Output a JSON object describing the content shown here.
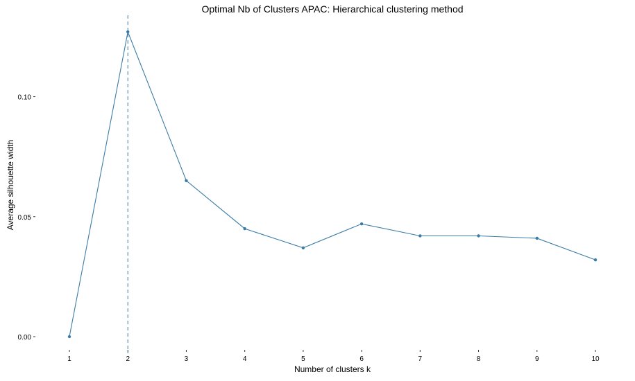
{
  "chart_data": {
    "type": "line",
    "title": "Optimal Nb of Clusters APAC: Hierarchical clustering method",
    "xlabel": "Number of clusters k",
    "ylabel": "Average silhouette width",
    "x": [
      1,
      2,
      3,
      4,
      5,
      6,
      7,
      8,
      9,
      10
    ],
    "x_tick_labels": [
      "1",
      "2",
      "3",
      "4",
      "5",
      "6",
      "7",
      "8",
      "9",
      "10"
    ],
    "series": [
      {
        "values": [
          0.0,
          0.127,
          0.065,
          0.045,
          0.037,
          0.047,
          0.042,
          0.042,
          0.041,
          0.032
        ]
      }
    ],
    "optimal_k": 2,
    "y_ticks": [
      0.0,
      0.05,
      0.1
    ],
    "y_tick_labels": [
      "0.00",
      "0.05",
      "0.10"
    ],
    "xlim": [
      1,
      10
    ],
    "ylim": [
      0.0,
      0.127
    ],
    "grid": false,
    "legend": "none",
    "colors": {
      "line": "#3b7ca6",
      "marker": "#3b7ca6",
      "vline": "#3b7ca6",
      "text": "#000000"
    }
  }
}
